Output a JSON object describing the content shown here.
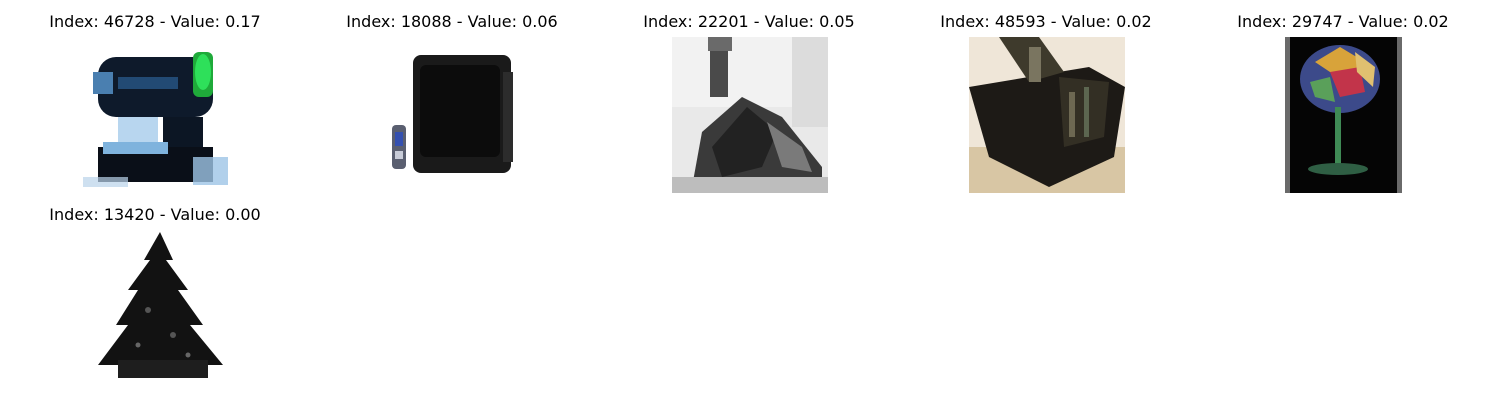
{
  "grid": {
    "items": [
      {
        "title": "Index: 46728 - Value: 0.17",
        "image": "projector-light-fixture-thumbnail"
      },
      {
        "title": "Index: 18088 - Value: 0.06",
        "image": "television-with-remote-thumbnail"
      },
      {
        "title": "Index: 22201 - Value: 0.05",
        "image": "grayscale-locomotive-thumbnail"
      },
      {
        "title": "Index: 48593 - Value: 0.02",
        "image": "dark-box-object-thumbnail"
      },
      {
        "title": "Index: 29747 - Value: 0.02",
        "image": "stained-glass-lamp-thumbnail"
      },
      {
        "title": "Index: 13420 - Value: 0.00",
        "image": "dark-pine-tree-thumbnail"
      }
    ]
  }
}
